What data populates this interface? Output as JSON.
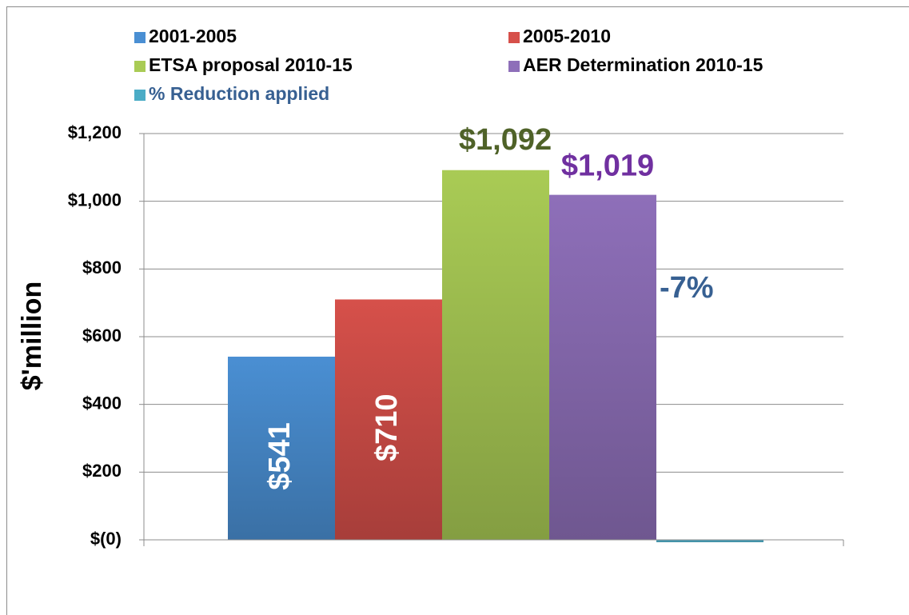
{
  "chart_data": {
    "type": "bar",
    "y_label": "$'million",
    "categories": [
      null
    ],
    "ylim": [
      0,
      1200
    ],
    "yticks": [
      {
        "value": 0,
        "label": "$(0)"
      },
      {
        "value": 200,
        "label": "$200"
      },
      {
        "value": 400,
        "label": "$400"
      },
      {
        "value": 600,
        "label": "$600"
      },
      {
        "value": 800,
        "label": "$800"
      },
      {
        "value": 1000,
        "label": "$1,000"
      },
      {
        "value": 1200,
        "label": "$1,200"
      }
    ],
    "grid": true,
    "legend": "top",
    "series": [
      {
        "name": "2001-2005",
        "color": "#4a8fd3",
        "values": [
          541
        ],
        "value_labels": [
          "$541"
        ],
        "label_color": "#ffffff",
        "label_position": "inside-rotated"
      },
      {
        "name": "2005-2010",
        "color": "#d6504a",
        "values": [
          710
        ],
        "value_labels": [
          "$710"
        ],
        "label_color": "#ffffff",
        "label_position": "inside-rotated"
      },
      {
        "name": "ETSA proposal 2010-15",
        "color": "#a9cb55",
        "values": [
          1092
        ],
        "value_labels": [
          "$1,092"
        ],
        "label_color": "#4f6228",
        "label_position": "above"
      },
      {
        "name": "AER Determination 2010-15",
        "color": "#8e6fb9",
        "values": [
          1019
        ],
        "value_labels": [
          "$1,019"
        ],
        "label_color": "#7030a0",
        "label_position": "above"
      },
      {
        "name": "% Reduction applied",
        "color": "#4bacc6",
        "values": [
          -7
        ],
        "value_labels": [
          "-7%"
        ],
        "label_color": "#376092",
        "label_position": "side"
      }
    ]
  }
}
